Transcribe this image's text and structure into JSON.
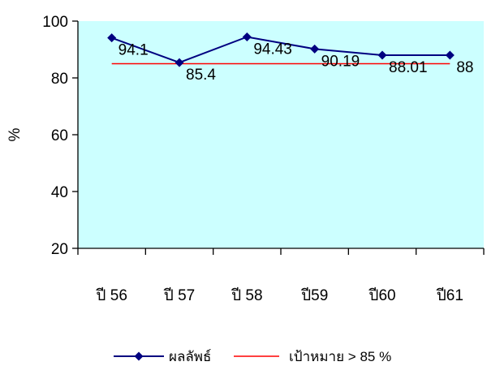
{
  "chart_data": {
    "type": "line",
    "categories": [
      "ปี 56",
      "ปี 57",
      "ปี 58",
      "ปี59",
      "ปี60",
      "ปี61"
    ],
    "ylabel": "%",
    "ylim": [
      20,
      100
    ],
    "yticks": [
      20,
      40,
      60,
      80,
      100
    ],
    "series": [
      {
        "name": "ผลลัพธ์",
        "values": [
          94.1,
          85.4,
          94.43,
          90.19,
          88.01,
          88
        ],
        "labels": [
          "94.1",
          "85.4",
          "94.43",
          "90.19",
          "88.01",
          "88"
        ],
        "color": "#000080",
        "marker": "diamond"
      },
      {
        "name": "เป้าหมาย > 85 %",
        "values": [
          85,
          85,
          85,
          85,
          85,
          85
        ],
        "color": "#ff0000",
        "marker": "none"
      }
    ],
    "plot_background": "#ccffff",
    "grid": false,
    "legend_position": "bottom"
  }
}
